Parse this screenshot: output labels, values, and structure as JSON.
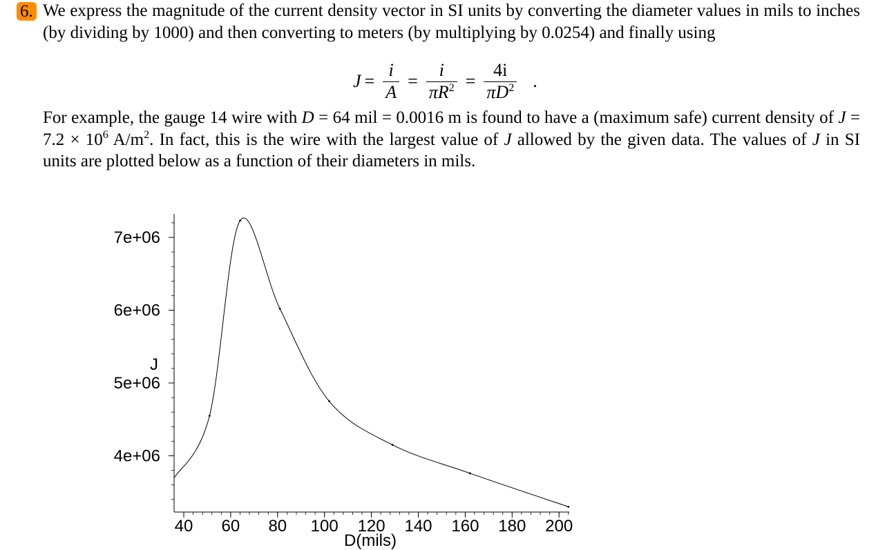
{
  "problem": {
    "number": "6.",
    "para1": "We express the magnitude of the current density vector in SI units by converting the diameter values in mils to inches (by dividing by 1000) and then converting to meters (by multiplying by 0.0254) and finally using",
    "equation": {
      "lhs": "J",
      "f1_num": "i",
      "f1_den": "A",
      "f2_num": "i",
      "f2_den": "πR",
      "f3_num": "4i",
      "f3_den": "πD",
      "exponent": "2",
      "trailing": "."
    },
    "para2": {
      "t1": "For example, the gauge 14 wire with ",
      "D": "D",
      "t2": " = 64 mil = 0.0016 m is found to have a (maximum safe) current density of ",
      "J": "J",
      "t3": " = 7.2 × 10",
      "exp": "6",
      "t4": " A/m",
      "exp2": "2",
      "t5": ". In fact, this is the wire with the largest value of ",
      "J2": "J",
      "t6": " allowed by the given data. The values of ",
      "J3": "J",
      "t7": " in SI units are plotted below as a function of their diameters in mils."
    }
  },
  "chart_data": {
    "type": "line",
    "xlabel": "D(mils)",
    "ylabel": "J",
    "xlim": [
      36,
      206
    ],
    "ylim": [
      3280000,
      7300000
    ],
    "x_ticks": [
      40,
      60,
      80,
      100,
      120,
      140,
      160,
      180,
      200
    ],
    "x_tick_labels": [
      "40",
      "60",
      "80",
      "100",
      "120",
      "140",
      "160",
      "180",
      "200"
    ],
    "y_ticks": [
      4000000,
      5000000,
      6000000,
      7000000
    ],
    "y_tick_labels": [
      "4e+06",
      "5e+06",
      "6e+06",
      "7e+06"
    ],
    "curve_start": [
      36,
      3700000
    ],
    "x": [
      51,
      64,
      81,
      102,
      129,
      162,
      204
    ],
    "y": [
      4550000,
      7230000,
      6020000,
      4750000,
      4150000,
      3760000,
      3300000
    ],
    "line_color": "#000000"
  }
}
